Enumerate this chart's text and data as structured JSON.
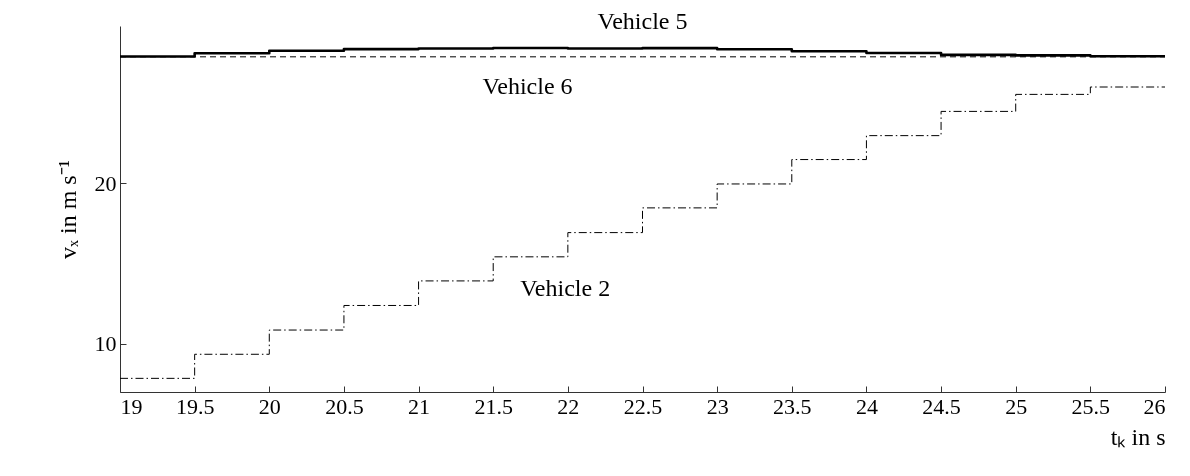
{
  "chart_data": {
    "type": "step",
    "xlabel": "tₖ in s",
    "ylabel": "vₓ in m s⁻¹",
    "x": [
      19,
      19.5,
      20,
      20.5,
      21,
      21.5,
      22,
      22.5,
      23,
      23.5,
      24,
      24.5,
      25,
      25.5,
      26
    ],
    "series": [
      {
        "name": "Vehicle 5",
        "color": "#000000",
        "line_style": "solid",
        "values": [
          27.9,
          28.1,
          28.26,
          28.36,
          28.4,
          28.43,
          28.4,
          28.42,
          28.35,
          28.23,
          28.12,
          28.0,
          27.97,
          27.92,
          27.92
        ]
      },
      {
        "name": "Vehicle 6",
        "color": "#000000",
        "line_style": "dashed",
        "values": [
          27.88,
          27.88,
          27.88,
          27.88,
          27.88,
          27.88,
          27.88,
          27.88,
          27.88,
          27.88,
          27.88,
          27.88,
          27.88,
          27.88,
          27.88
        ]
      },
      {
        "name": "Vehicle 2",
        "color": "#000000",
        "line_style": "dashdot",
        "values": [
          7.85,
          9.35,
          10.86,
          12.39,
          13.92,
          15.42,
          16.93,
          18.47,
          19.96,
          21.48,
          22.97,
          24.48,
          25.54,
          26.0,
          26.0
        ]
      }
    ],
    "xlim": [
      19,
      26
    ],
    "ylim": [
      7,
      29.8
    ],
    "xticks": [
      19,
      19.5,
      20,
      20.5,
      21,
      21.5,
      22,
      22.5,
      23,
      23.5,
      24,
      24.5,
      25,
      25.5,
      26
    ],
    "yticks": [
      10,
      20
    ]
  }
}
